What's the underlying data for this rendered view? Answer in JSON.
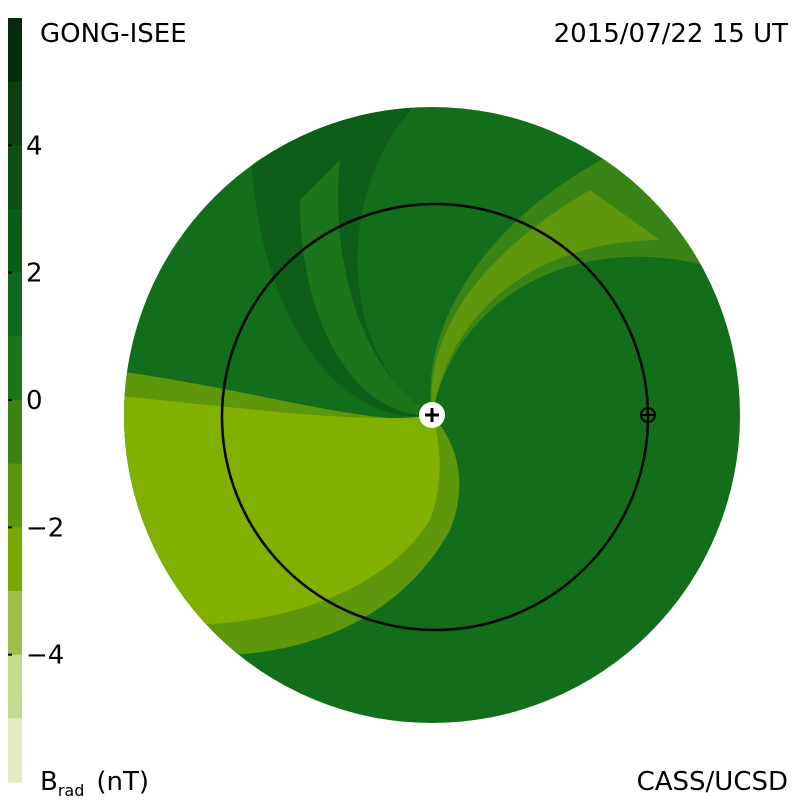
{
  "header": {
    "title": "GONG-ISEE",
    "date": "2015/07/22 15 UT",
    "credit": "CASS/UCSD"
  },
  "colorbar": {
    "label": "B",
    "label_sub": "rad",
    "unit": "(nT)",
    "range": [
      -6,
      6
    ],
    "ticks": [
      4,
      2,
      0,
      {
        "value": -2,
        "label": "−2"
      },
      {
        "value": -4,
        "label": "−4"
      }
    ],
    "colors": [
      "#062b0c",
      "#0a3f12",
      "#0b4f15",
      "#0c5d17",
      "#0d6a1a",
      "#1b751a",
      "#3a8416",
      "#5e960c",
      "#7aa800",
      "#9cc04a",
      "#c4dc90",
      "#e0ecc0"
    ]
  }
}
